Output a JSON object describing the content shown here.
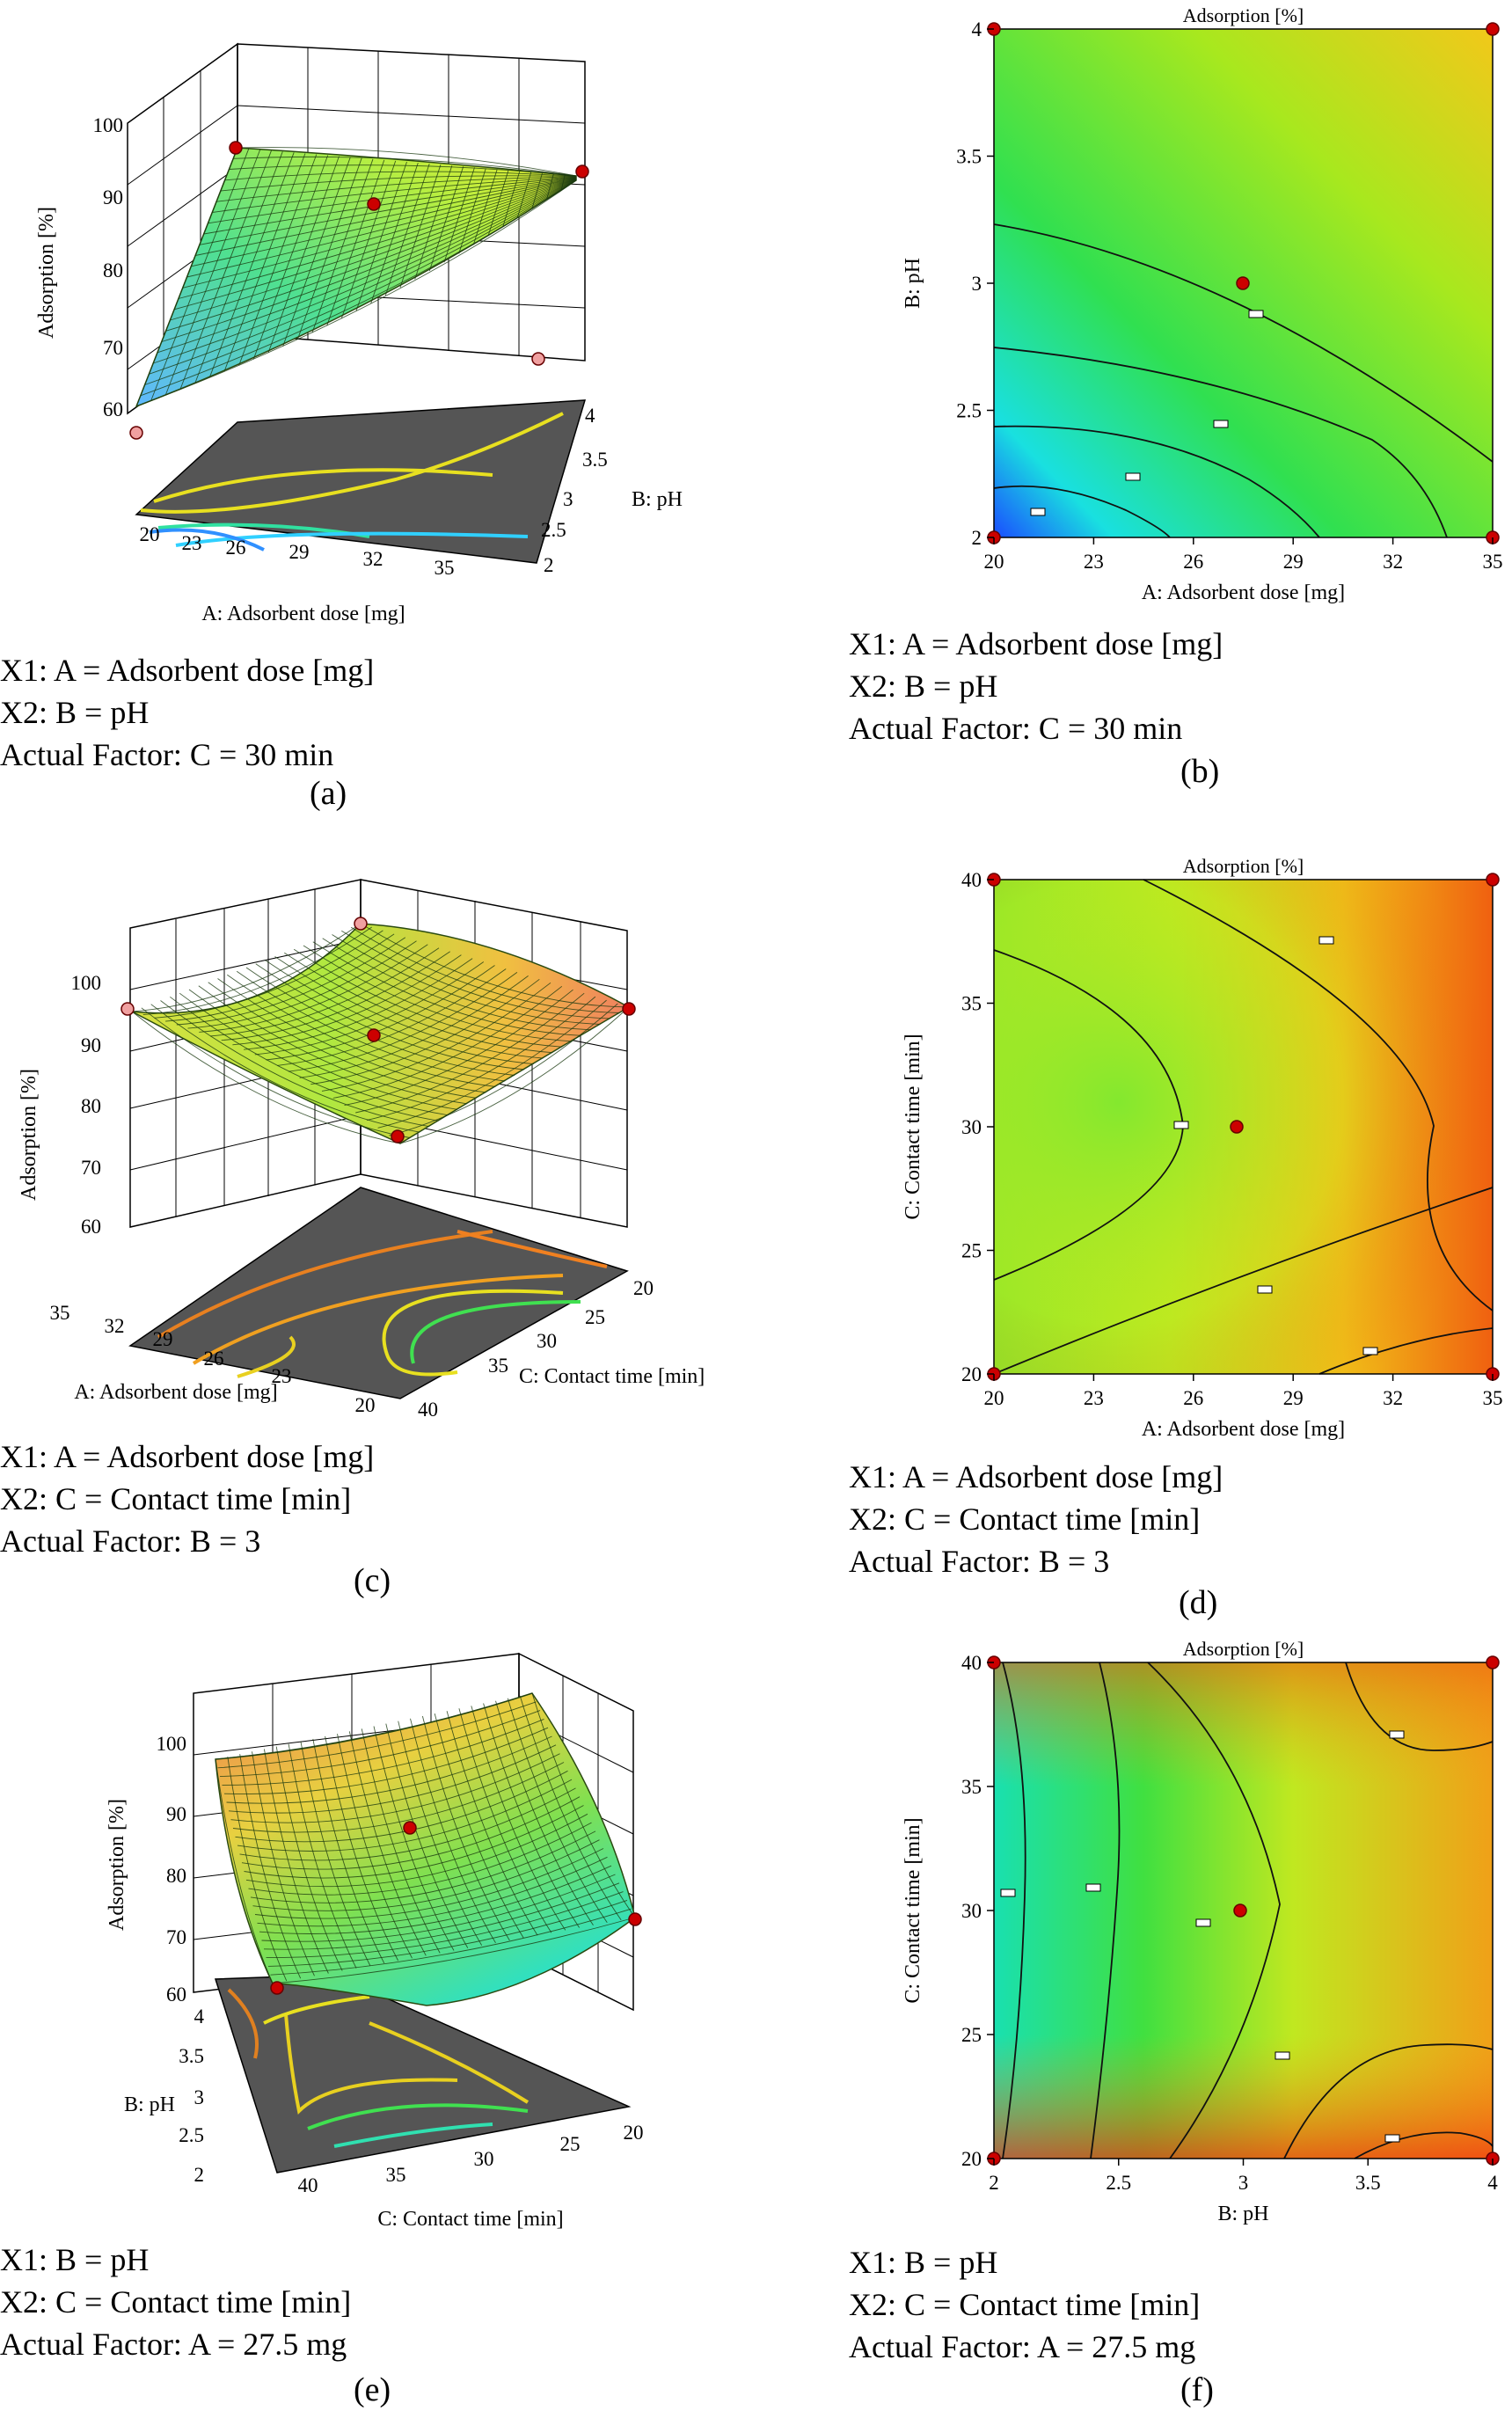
{
  "chart_data": [
    {
      "type": "surface",
      "panel": "(a)",
      "zlabel": "Adsorption [%]",
      "xlabel": "A: Adsorbent dose [mg]",
      "ylabel": "B: pH",
      "z_ticks": [
        "60",
        "70",
        "80",
        "90",
        "100"
      ],
      "x_ticks": [
        "20",
        "23",
        "26",
        "29",
        "32",
        "35"
      ],
      "y_ticks": [
        "2",
        "2.5",
        "3",
        "3.5",
        "4"
      ],
      "caption": [
        "X1: A = Adsorbent dose [mg]",
        "X2: B = pH",
        "Actual Factor: C = 30 min"
      ],
      "colors": {
        "low": "#3a8cff",
        "mid": "#9af03c",
        "high": "#f0e030",
        "floor": "#505050"
      }
    },
    {
      "type": "contour",
      "panel": "(b)",
      "title": "Adsorption [%]",
      "xlabel": "A: Adsorbent dose [mg]",
      "ylabel": "B: pH",
      "x_ticks": [
        "20",
        "23",
        "26",
        "29",
        "32",
        "35"
      ],
      "y_ticks": [
        "2",
        "2.5",
        "3",
        "3.5",
        "4"
      ],
      "caption": [
        "X1: A = Adsorbent dose [mg]",
        "X2: B = pH",
        "Actual Factor: C = 30 min"
      ]
    },
    {
      "type": "surface",
      "panel": "(c)",
      "zlabel": "Adsorption [%]",
      "xlabel": "A: Adsorbent dose [mg]",
      "ylabel": "C: Contact time [min]",
      "z_ticks": [
        "60",
        "70",
        "80",
        "90",
        "100"
      ],
      "x_ticks": [
        "35",
        "32",
        "29",
        "26",
        "23",
        "20"
      ],
      "y_ticks": [
        "20",
        "25",
        "30",
        "35",
        "40"
      ],
      "caption": [
        "X1: A = Adsorbent dose [mg]",
        "X2: C = Contact time [min]",
        "Actual Factor: B = 3"
      ]
    },
    {
      "type": "contour",
      "panel": "(d)",
      "title": "Adsorption [%]",
      "xlabel": "A: Adsorbent dose [mg]",
      "ylabel": "C: Contact time [min]",
      "x_ticks": [
        "20",
        "23",
        "26",
        "29",
        "32",
        "35"
      ],
      "y_ticks": [
        "20",
        "25",
        "30",
        "35",
        "40"
      ],
      "caption": [
        "X1: A = Adsorbent dose [mg]",
        "X2: C = Contact time [min]",
        "Actual Factor: B = 3"
      ]
    },
    {
      "type": "surface",
      "panel": "(e)",
      "zlabel": "Adsorption [%]",
      "xlabel": "C: Contact time [min]",
      "ylabel": "B: pH",
      "z_ticks": [
        "60",
        "70",
        "80",
        "90",
        "100"
      ],
      "x_ticks": [
        "40",
        "35",
        "30",
        "25",
        "20"
      ],
      "y_ticks": [
        "2",
        "2.5",
        "3",
        "3.5",
        "4"
      ],
      "caption": [
        "X1: B = pH",
        "X2: C = Contact time [min]",
        "Actual Factor: A = 27.5 mg"
      ]
    },
    {
      "type": "contour",
      "panel": "(f)",
      "title": "Adsorption [%]",
      "xlabel": "B: pH",
      "ylabel": "C: Contact time [min]",
      "x_ticks": [
        "2",
        "2.5",
        "3",
        "3.5",
        "4"
      ],
      "y_ticks": [
        "20",
        "25",
        "30",
        "35",
        "40"
      ],
      "caption": [
        "X1: B = pH",
        "X2: C = Contact time [min]",
        "Actual Factor: A = 27.5 mg"
      ]
    }
  ]
}
